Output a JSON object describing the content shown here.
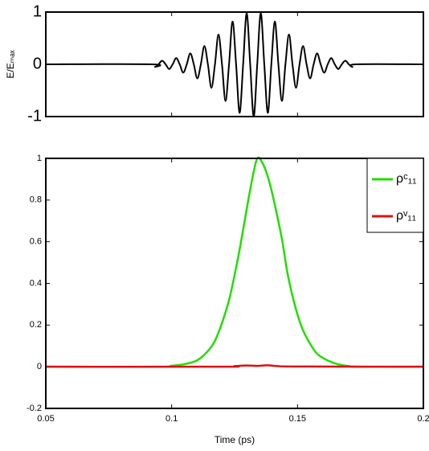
{
  "chart_data": [
    {
      "type": "line",
      "ylabel": "E/Eₘₐₓ",
      "xlim": [
        0.05,
        0.2
      ],
      "ylim": [
        -1,
        1
      ],
      "xticks": [
        0.05,
        0.1,
        0.15,
        0.2
      ],
      "yticks": [
        -1,
        0,
        1
      ],
      "series": [
        {
          "color": "#000000",
          "x": [
            0.05,
            0.092,
            0.0934,
            0.0948,
            0.0962,
            0.0976,
            0.099,
            0.1004,
            0.1018,
            0.1032,
            0.1046,
            0.106,
            0.1074,
            0.1088,
            0.1102,
            0.1116,
            0.113,
            0.1144,
            0.1158,
            0.1172,
            0.1186,
            0.12,
            0.1214,
            0.1228,
            0.1242,
            0.1256,
            0.127,
            0.1284,
            0.1298,
            0.1312,
            0.1326,
            0.134,
            0.1354,
            0.1368,
            0.1382,
            0.1396,
            0.141,
            0.1424,
            0.1438,
            0.1452,
            0.1466,
            0.148,
            0.1494,
            0.1508,
            0.1522,
            0.1536,
            0.155,
            0.1564,
            0.1578,
            0.1592,
            0.1606,
            0.162,
            0.1634,
            0.1648,
            0.1662,
            0.1676,
            0.169,
            0.1704,
            0.1718,
            0.1732,
            0.2
          ],
          "values": [
            0,
            0,
            -0.05,
            0,
            0.07,
            0,
            -0.09,
            0,
            0.12,
            0,
            -0.16,
            0,
            0.21,
            0,
            -0.27,
            0,
            0.35,
            0,
            -0.45,
            0,
            0.57,
            0,
            -0.7,
            0,
            0.82,
            0,
            -0.93,
            0,
            0.98,
            0,
            -1,
            0,
            0.98,
            0,
            -0.93,
            0,
            0.82,
            0,
            -0.7,
            0,
            0.57,
            0,
            -0.45,
            0,
            0.35,
            0,
            -0.27,
            0,
            0.21,
            0,
            -0.16,
            0,
            0.12,
            0,
            -0.09,
            0,
            0.07,
            0,
            -0.05,
            0,
            0
          ]
        }
      ]
    },
    {
      "type": "line",
      "xlabel": "Time (ps)",
      "xlim": [
        0.05,
        0.2
      ],
      "ylim": [
        -0.2,
        1
      ],
      "xticks": [
        0.05,
        0.1,
        0.15,
        0.2
      ],
      "yticks": [
        -0.2,
        0,
        0.2,
        0.4,
        0.6,
        0.8,
        1
      ],
      "legend": "upper right",
      "series": [
        {
          "name": "ρᶜ₁₁",
          "color": "#22dd00",
          "x": [
            0.05,
            0.095,
            0.1,
            0.105,
            0.11,
            0.114,
            0.117,
            0.12,
            0.123,
            0.126,
            0.128,
            0.13,
            0.132,
            0.134,
            0.136,
            0.138,
            0.14,
            0.142,
            0.144,
            0.146,
            0.148,
            0.15,
            0.152,
            0.155,
            0.158,
            0.162,
            0.166,
            0.17,
            0.175,
            0.2
          ],
          "values": [
            0,
            0,
            0.005,
            0.012,
            0.03,
            0.07,
            0.12,
            0.21,
            0.33,
            0.5,
            0.63,
            0.77,
            0.9,
            1,
            0.98,
            0.92,
            0.83,
            0.72,
            0.6,
            0.45,
            0.34,
            0.25,
            0.18,
            0.11,
            0.06,
            0.03,
            0.012,
            0.004,
            0,
            0
          ]
        },
        {
          "name": "ρᵛ₁₁",
          "color": "#dd1111",
          "x": [
            0.05,
            0.12,
            0.125,
            0.13,
            0.134,
            0.138,
            0.142,
            0.15,
            0.2
          ],
          "values": [
            0,
            0,
            0.003,
            0.006,
            0.004,
            0.007,
            0.003,
            0.001,
            0
          ]
        }
      ]
    }
  ]
}
